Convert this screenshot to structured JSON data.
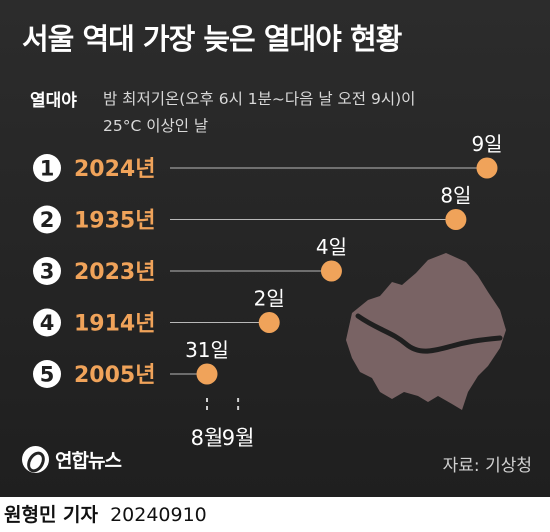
{
  "title": "서울 역대 가장 늦은 열대야 현황",
  "definition": {
    "term": "열대야",
    "line1": "밤 최저기온(오후 6시 1분~다음 날 오전 9시)이",
    "line2": "25°C 이상인 날"
  },
  "chart_data": {
    "type": "scatter",
    "ranks": [
      "1",
      "2",
      "3",
      "4",
      "5"
    ],
    "categories": [
      "2024년",
      "1935년",
      "2023년",
      "1914년",
      "2005년"
    ],
    "dates": [
      "09-09",
      "09-08",
      "09-04",
      "09-02",
      "08-31"
    ],
    "date_labels": [
      "9일",
      "8일",
      "4일",
      "2일",
      "31일"
    ],
    "x_ticks": [
      "08-01",
      "09-01"
    ],
    "x_tick_labels": [
      "8월",
      "9월"
    ],
    "title": "서울 역대 가장 늦은 열대야 현황",
    "xlabel": "",
    "ylabel": "",
    "colors": {
      "dot": "#f0a35a",
      "year": "#f0a35a",
      "map": "#8a6e6e",
      "background": "#242424"
    }
  },
  "logo": {
    "name": "연합뉴스"
  },
  "source": "자료: 기상청",
  "byline": {
    "name": "원형민 기자",
    "date": "20240910"
  }
}
